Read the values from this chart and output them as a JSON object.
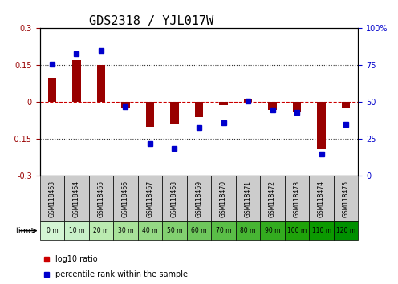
{
  "title": "GDS2318 / YJL017W",
  "samples": [
    "GSM118463",
    "GSM118464",
    "GSM118465",
    "GSM118466",
    "GSM118467",
    "GSM118468",
    "GSM118469",
    "GSM118470",
    "GSM118471",
    "GSM118472",
    "GSM118473",
    "GSM118474",
    "GSM118475"
  ],
  "time_labels": [
    "0 m",
    "10 m",
    "20 m",
    "30 m",
    "40 m",
    "50 m",
    "60 m",
    "70 m",
    "80 m",
    "90 m",
    "100 m",
    "110 m",
    "120 m"
  ],
  "log10_ratio": [
    0.1,
    0.17,
    0.15,
    -0.02,
    -0.1,
    -0.09,
    -0.06,
    -0.01,
    0.01,
    -0.03,
    -0.04,
    -0.19,
    -0.02
  ],
  "percentile_rank": [
    76,
    83,
    85,
    47,
    22,
    19,
    33,
    36,
    51,
    45,
    43,
    15,
    35
  ],
  "ylim_left": [
    -0.3,
    0.3
  ],
  "ylim_right": [
    0,
    100
  ],
  "yticks_left": [
    -0.3,
    -0.15,
    0,
    0.15,
    0.3
  ],
  "yticks_right": [
    0,
    25,
    50,
    75,
    100
  ],
  "bar_color": "#990000",
  "dot_color": "#0000cc",
  "zero_line_color": "#cc0000",
  "dotted_line_color": "#333333",
  "bg_plot": "#ffffff",
  "bg_sample_gray": "#cccccc",
  "bg_time_light": "#ccffcc",
  "bg_time_dark": "#66cc66",
  "legend_ratio_color": "#cc0000",
  "legend_percentile_color": "#0000cc",
  "title_fontsize": 11,
  "tick_fontsize": 7,
  "label_fontsize": 8
}
